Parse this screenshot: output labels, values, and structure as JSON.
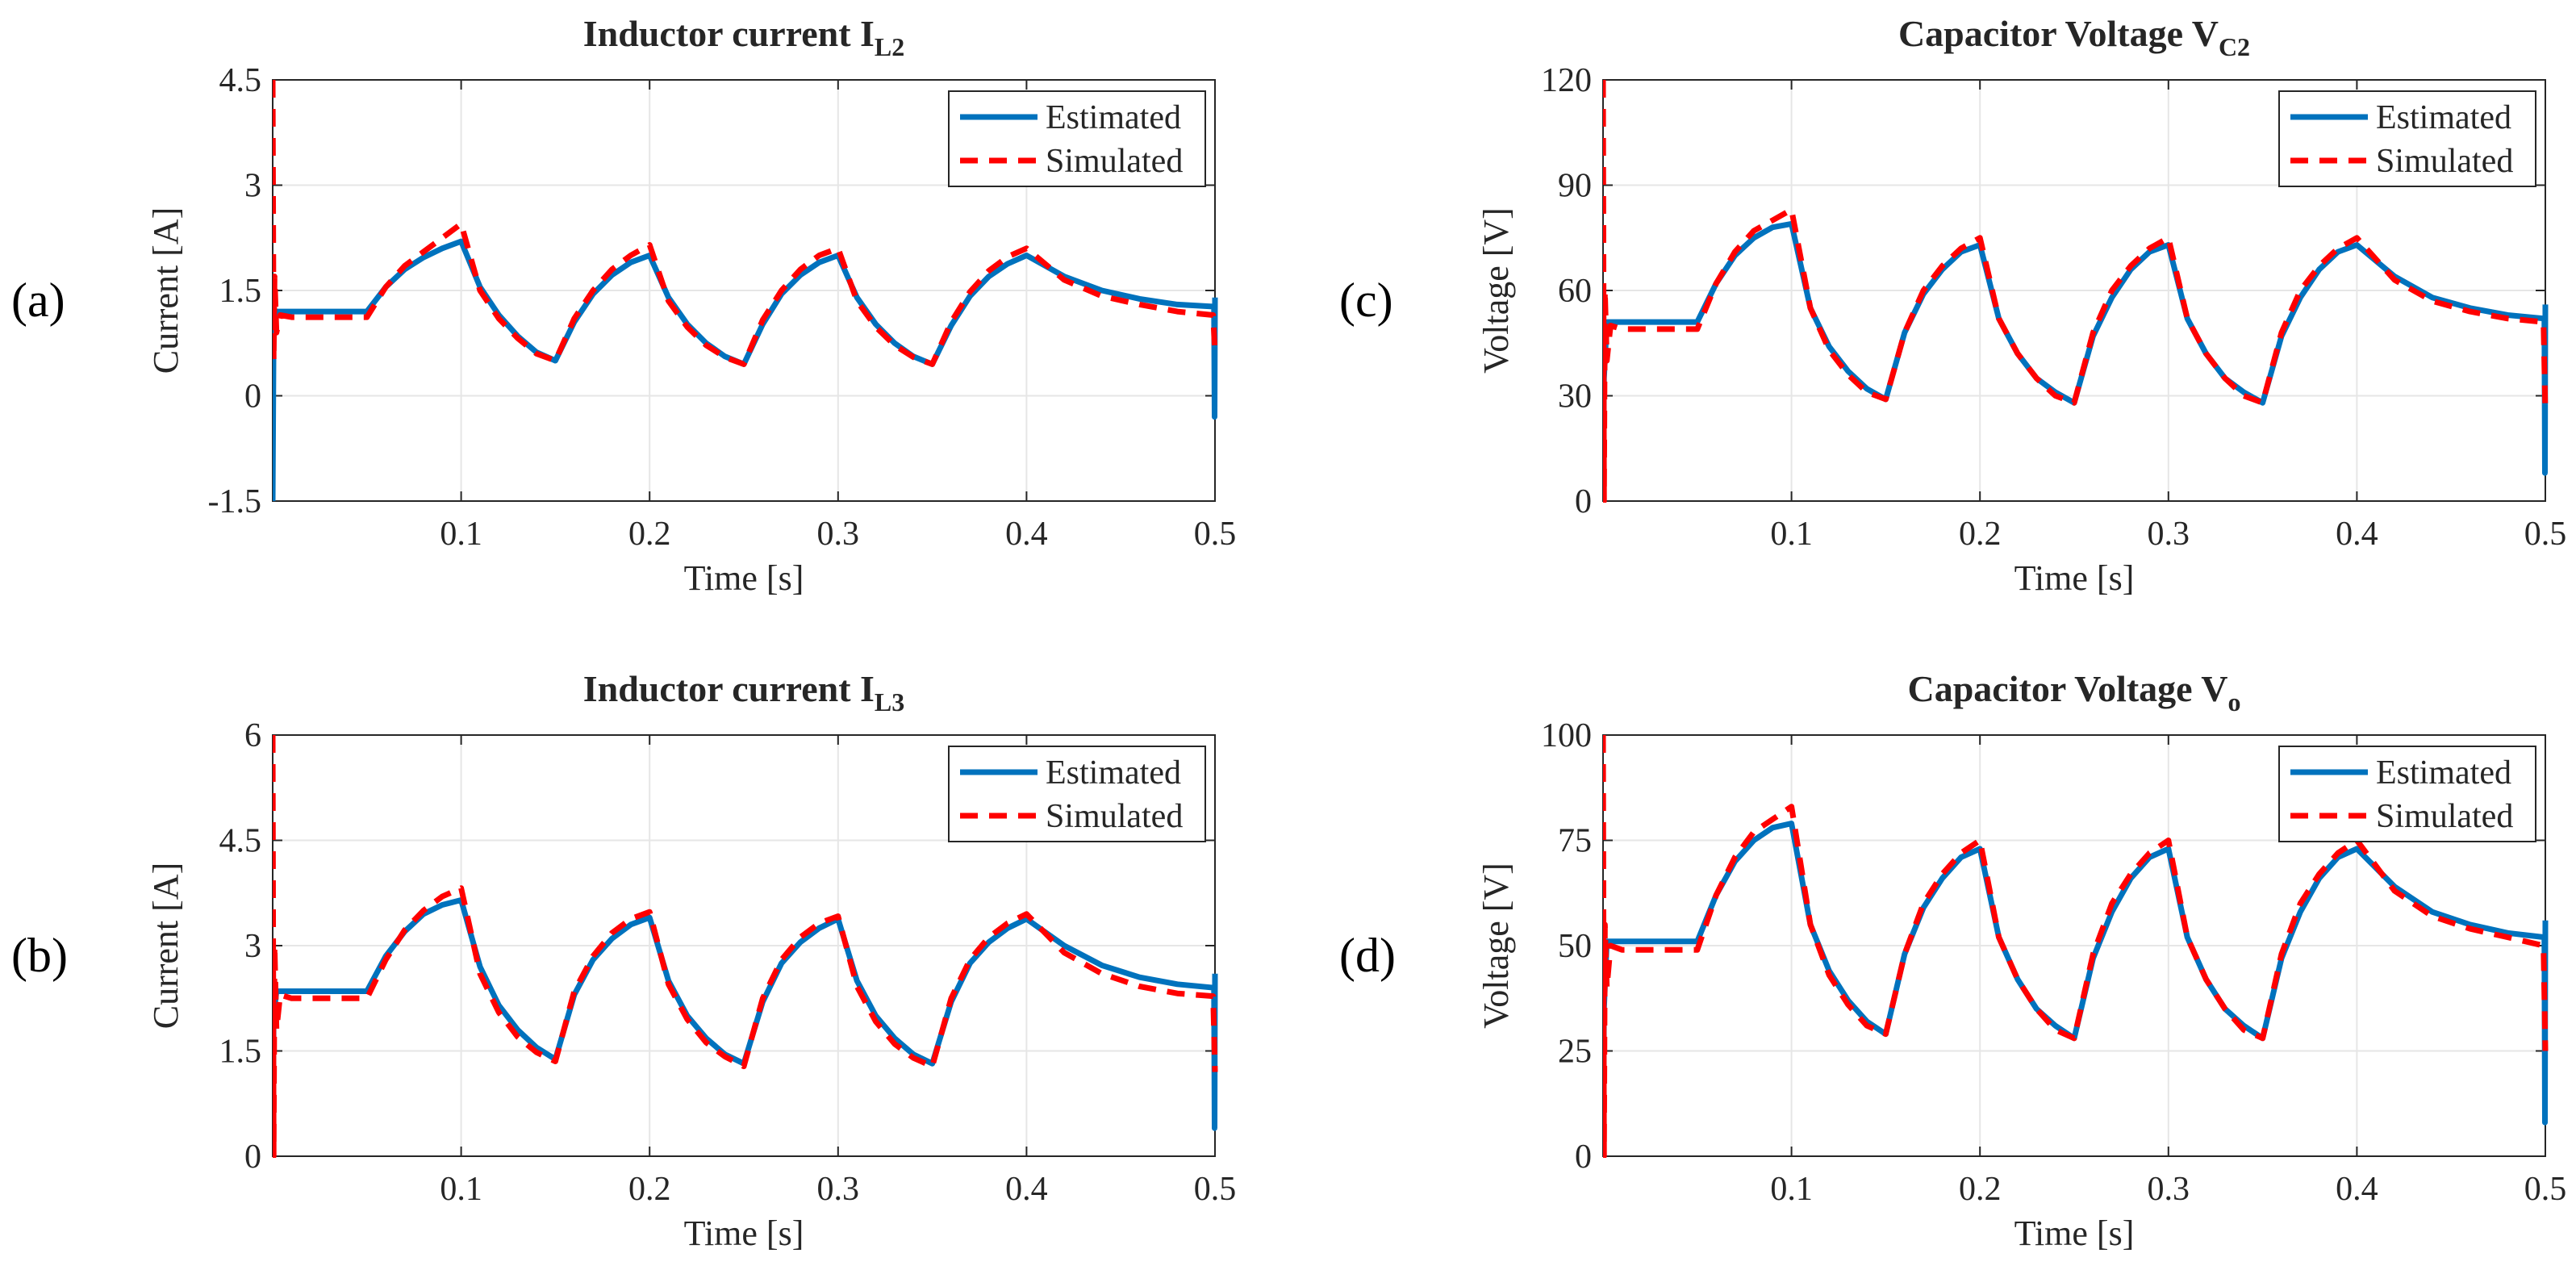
{
  "chart_data": [
    {
      "type": "line",
      "panel_label": "(a)",
      "title": "Inductor current I",
      "title_sub": "L2",
      "xlabel": "Time [s]",
      "ylabel": "Current [A]",
      "xlim": [
        0,
        0.5
      ],
      "ylim": [
        -1.5,
        4.5
      ],
      "xticks": [
        0.1,
        0.2,
        0.3,
        0.4,
        0.5
      ],
      "xtick_labels": [
        "0.1",
        "0.2",
        "0.3",
        "0.4",
        "0.5"
      ],
      "yticks": [
        -1.5,
        0,
        1.5,
        3,
        4.5
      ],
      "ytick_labels": [
        "-1.5",
        "0",
        "1.5",
        "3",
        "4.5"
      ],
      "grid": true,
      "legend": {
        "location": "top-right",
        "entries": [
          "Estimated",
          "Simulated"
        ]
      },
      "series": [
        {
          "name": "Estimated",
          "color": "#0072BD",
          "style": "solid",
          "x": [
            0,
            0.0005,
            0.002,
            0.05,
            0.06,
            0.07,
            0.08,
            0.09,
            0.1,
            0.11,
            0.12,
            0.13,
            0.14,
            0.15,
            0.16,
            0.17,
            0.18,
            0.19,
            0.2,
            0.21,
            0.22,
            0.23,
            0.24,
            0.25,
            0.26,
            0.27,
            0.28,
            0.29,
            0.3,
            0.31,
            0.32,
            0.33,
            0.34,
            0.35,
            0.36,
            0.37,
            0.38,
            0.39,
            0.4,
            0.42,
            0.44,
            0.46,
            0.48,
            0.4995,
            0.4998,
            0.5
          ],
          "y": [
            -1.5,
            1.0,
            1.2,
            1.2,
            1.55,
            1.8,
            1.97,
            2.1,
            2.2,
            1.55,
            1.15,
            0.85,
            0.62,
            0.5,
            1.05,
            1.45,
            1.72,
            1.9,
            2.0,
            1.4,
            1.02,
            0.75,
            0.56,
            0.45,
            1.02,
            1.45,
            1.72,
            1.9,
            2.0,
            1.4,
            1.02,
            0.75,
            0.56,
            0.45,
            1.0,
            1.42,
            1.7,
            1.88,
            2.0,
            1.7,
            1.5,
            1.38,
            1.3,
            1.27,
            -0.3,
            1.4
          ]
        },
        {
          "name": "Simulated",
          "color": "#FF0000",
          "style": "dashed",
          "x": [
            0,
            0.0005,
            0.001,
            0.002,
            0.004,
            0.01,
            0.05,
            0.06,
            0.07,
            0.08,
            0.09,
            0.1,
            0.11,
            0.12,
            0.13,
            0.14,
            0.15,
            0.16,
            0.17,
            0.18,
            0.19,
            0.2,
            0.21,
            0.22,
            0.23,
            0.24,
            0.25,
            0.26,
            0.27,
            0.28,
            0.29,
            0.3,
            0.31,
            0.32,
            0.33,
            0.34,
            0.35,
            0.36,
            0.37,
            0.38,
            0.39,
            0.4,
            0.42,
            0.44,
            0.46,
            0.48,
            0.499,
            0.5
          ],
          "y": [
            4.5,
            0.5,
            1.7,
            0.9,
            1.15,
            1.12,
            1.12,
            1.55,
            1.85,
            2.05,
            2.25,
            2.45,
            1.5,
            1.1,
            0.82,
            0.6,
            0.5,
            1.1,
            1.5,
            1.8,
            2.0,
            2.15,
            1.35,
            0.98,
            0.72,
            0.55,
            0.45,
            1.08,
            1.5,
            1.8,
            2.0,
            2.1,
            1.35,
            0.98,
            0.72,
            0.55,
            0.45,
            1.05,
            1.48,
            1.78,
            1.98,
            2.1,
            1.65,
            1.42,
            1.3,
            1.2,
            1.15,
            0.6
          ]
        }
      ]
    },
    {
      "type": "line",
      "panel_label": "(b)",
      "title": "Inductor current I",
      "title_sub": "L3",
      "xlabel": "Time [s]",
      "ylabel": "Current [A]",
      "xlim": [
        0,
        0.5
      ],
      "ylim": [
        0,
        6
      ],
      "xticks": [
        0.1,
        0.2,
        0.3,
        0.4,
        0.5
      ],
      "xtick_labels": [
        "0.1",
        "0.2",
        "0.3",
        "0.4",
        "0.5"
      ],
      "yticks": [
        0,
        1.5,
        3,
        4.5,
        6
      ],
      "ytick_labels": [
        "0",
        "1.5",
        "3",
        "4.5",
        "6"
      ],
      "grid": true,
      "legend": {
        "location": "top-right",
        "entries": [
          "Estimated",
          "Simulated"
        ]
      },
      "series": [
        {
          "name": "Estimated",
          "color": "#0072BD",
          "style": "solid",
          "x": [
            0,
            0.0005,
            0.002,
            0.05,
            0.06,
            0.07,
            0.08,
            0.09,
            0.1,
            0.11,
            0.12,
            0.13,
            0.14,
            0.15,
            0.16,
            0.17,
            0.18,
            0.19,
            0.2,
            0.21,
            0.22,
            0.23,
            0.24,
            0.25,
            0.26,
            0.27,
            0.28,
            0.29,
            0.3,
            0.31,
            0.32,
            0.33,
            0.34,
            0.35,
            0.36,
            0.37,
            0.38,
            0.39,
            0.4,
            0.42,
            0.44,
            0.46,
            0.48,
            0.4995,
            0.4998,
            0.5
          ],
          "y": [
            0.1,
            2.0,
            2.35,
            2.35,
            2.85,
            3.2,
            3.45,
            3.58,
            3.65,
            2.7,
            2.15,
            1.8,
            1.55,
            1.38,
            2.3,
            2.8,
            3.1,
            3.3,
            3.4,
            2.5,
            2.0,
            1.68,
            1.45,
            1.32,
            2.2,
            2.75,
            3.05,
            3.25,
            3.38,
            2.5,
            2.0,
            1.68,
            1.45,
            1.32,
            2.2,
            2.75,
            3.05,
            3.25,
            3.38,
            3.0,
            2.72,
            2.55,
            2.45,
            2.4,
            0.4,
            2.6
          ]
        },
        {
          "name": "Simulated",
          "color": "#FF0000",
          "style": "dashed",
          "x": [
            0,
            0.0005,
            0.001,
            0.002,
            0.004,
            0.01,
            0.05,
            0.06,
            0.07,
            0.08,
            0.09,
            0.1,
            0.11,
            0.12,
            0.13,
            0.14,
            0.15,
            0.16,
            0.17,
            0.18,
            0.19,
            0.2,
            0.21,
            0.22,
            0.23,
            0.24,
            0.25,
            0.26,
            0.27,
            0.28,
            0.29,
            0.3,
            0.31,
            0.32,
            0.33,
            0.34,
            0.35,
            0.36,
            0.37,
            0.38,
            0.39,
            0.4,
            0.42,
            0.44,
            0.46,
            0.48,
            0.499,
            0.5
          ],
          "y": [
            6.0,
            0.0,
            3.0,
            1.8,
            2.3,
            2.25,
            2.25,
            2.8,
            3.22,
            3.5,
            3.7,
            3.82,
            2.6,
            2.05,
            1.7,
            1.48,
            1.35,
            2.35,
            2.85,
            3.18,
            3.38,
            3.48,
            2.45,
            1.95,
            1.62,
            1.42,
            1.28,
            2.25,
            2.8,
            3.12,
            3.32,
            3.42,
            2.42,
            1.92,
            1.6,
            1.4,
            1.28,
            2.25,
            2.8,
            3.12,
            3.32,
            3.45,
            2.9,
            2.6,
            2.42,
            2.32,
            2.28,
            1.2
          ]
        }
      ]
    },
    {
      "type": "line",
      "panel_label": "(c)",
      "title": "Capacitor Voltage V",
      "title_sub": "C2",
      "xlabel": "Time [s]",
      "ylabel": "Voltage [V]",
      "xlim": [
        0,
        0.5
      ],
      "ylim": [
        0,
        120
      ],
      "xticks": [
        0.1,
        0.2,
        0.3,
        0.4,
        0.5
      ],
      "xtick_labels": [
        "0.1",
        "0.2",
        "0.3",
        "0.4",
        "0.5"
      ],
      "yticks": [
        0,
        30,
        60,
        90,
        120
      ],
      "ytick_labels": [
        "0",
        "30",
        "60",
        "90",
        "120"
      ],
      "grid": true,
      "legend": {
        "location": "top-right",
        "entries": [
          "Estimated",
          "Simulated"
        ]
      },
      "series": [
        {
          "name": "Estimated",
          "color": "#0072BD",
          "style": "solid",
          "x": [
            0,
            0.0005,
            0.002,
            0.05,
            0.06,
            0.07,
            0.08,
            0.09,
            0.1,
            0.11,
            0.12,
            0.13,
            0.14,
            0.15,
            0.16,
            0.17,
            0.18,
            0.19,
            0.2,
            0.21,
            0.22,
            0.23,
            0.24,
            0.25,
            0.26,
            0.27,
            0.28,
            0.29,
            0.3,
            0.31,
            0.32,
            0.33,
            0.34,
            0.35,
            0.36,
            0.37,
            0.38,
            0.39,
            0.4,
            0.42,
            0.44,
            0.46,
            0.48,
            0.4995,
            0.4998,
            0.5
          ],
          "y": [
            0,
            35,
            51,
            51,
            62,
            70,
            75,
            78,
            79,
            55,
            44,
            37,
            32,
            29,
            48,
            59,
            66,
            71,
            73,
            52,
            42,
            35,
            31,
            28,
            47,
            58,
            66,
            71,
            73,
            52,
            42,
            35,
            31,
            28,
            47,
            58,
            66,
            71,
            73,
            64,
            58,
            55,
            53,
            52,
            8,
            56
          ]
        },
        {
          "name": "Simulated",
          "color": "#FF0000",
          "style": "dashed",
          "x": [
            0,
            0.0005,
            0.001,
            0.002,
            0.004,
            0.01,
            0.05,
            0.06,
            0.07,
            0.08,
            0.09,
            0.1,
            0.11,
            0.12,
            0.13,
            0.14,
            0.15,
            0.16,
            0.17,
            0.18,
            0.19,
            0.2,
            0.21,
            0.22,
            0.23,
            0.24,
            0.25,
            0.26,
            0.27,
            0.28,
            0.29,
            0.3,
            0.31,
            0.32,
            0.33,
            0.34,
            0.35,
            0.36,
            0.37,
            0.38,
            0.39,
            0.4,
            0.42,
            0.44,
            0.46,
            0.48,
            0.499,
            0.5
          ],
          "y": [
            120,
            0,
            60,
            40,
            50,
            49,
            49,
            62,
            71,
            77,
            80,
            83,
            55,
            43,
            36,
            31,
            29,
            48,
            60,
            67,
            72,
            75,
            52,
            42,
            35,
            30,
            28,
            48,
            60,
            67,
            72,
            75,
            52,
            42,
            35,
            30,
            28,
            48,
            60,
            67,
            72,
            75,
            63,
            57,
            54,
            52,
            51,
            25
          ]
        }
      ]
    },
    {
      "type": "line",
      "panel_label": "(d)",
      "title": "Capacitor Voltage V",
      "title_sub": "o",
      "xlabel": "Time [s]",
      "ylabel": "Voltage [V]",
      "xlim": [
        0,
        0.5
      ],
      "ylim": [
        0,
        100
      ],
      "xticks": [
        0.1,
        0.2,
        0.3,
        0.4,
        0.5
      ],
      "xtick_labels": [
        "0.1",
        "0.2",
        "0.3",
        "0.4",
        "0.5"
      ],
      "yticks": [
        0,
        25,
        50,
        75,
        100
      ],
      "ytick_labels": [
        "0",
        "25",
        "50",
        "75",
        "100"
      ],
      "grid": true,
      "legend": {
        "location": "top-right",
        "entries": [
          "Estimated",
          "Simulated"
        ]
      },
      "series": [
        {
          "name": "Estimated",
          "color": "#0072BD",
          "style": "solid",
          "x": [
            0,
            0.0005,
            0.002,
            0.05,
            0.06,
            0.07,
            0.08,
            0.09,
            0.1,
            0.11,
            0.12,
            0.13,
            0.14,
            0.15,
            0.16,
            0.17,
            0.18,
            0.19,
            0.2,
            0.21,
            0.22,
            0.23,
            0.24,
            0.25,
            0.26,
            0.27,
            0.28,
            0.29,
            0.3,
            0.31,
            0.32,
            0.33,
            0.34,
            0.35,
            0.36,
            0.37,
            0.38,
            0.39,
            0.4,
            0.42,
            0.44,
            0.46,
            0.48,
            0.4995,
            0.4998,
            0.5
          ],
          "y": [
            0,
            35,
            51,
            51,
            62,
            70,
            75,
            78,
            79,
            55,
            44,
            37,
            32,
            29,
            48,
            59,
            66,
            71,
            73,
            52,
            42,
            35,
            31,
            28,
            47,
            58,
            66,
            71,
            73,
            52,
            42,
            35,
            31,
            28,
            47,
            58,
            66,
            71,
            73,
            64,
            58,
            55,
            53,
            52,
            8,
            56
          ]
        },
        {
          "name": "Simulated",
          "color": "#FF0000",
          "style": "dashed",
          "x": [
            0,
            0.0005,
            0.001,
            0.002,
            0.004,
            0.01,
            0.05,
            0.06,
            0.07,
            0.08,
            0.09,
            0.1,
            0.11,
            0.12,
            0.13,
            0.14,
            0.15,
            0.16,
            0.17,
            0.18,
            0.19,
            0.2,
            0.21,
            0.22,
            0.23,
            0.24,
            0.25,
            0.26,
            0.27,
            0.28,
            0.29,
            0.3,
            0.31,
            0.32,
            0.33,
            0.34,
            0.35,
            0.36,
            0.37,
            0.38,
            0.39,
            0.4,
            0.42,
            0.44,
            0.46,
            0.48,
            0.499,
            0.5
          ],
          "y": [
            100,
            0,
            55,
            40,
            50,
            49,
            49,
            62,
            71,
            77,
            80,
            83,
            55,
            43,
            36,
            31,
            29,
            48,
            60,
            67,
            72,
            75,
            52,
            42,
            35,
            30,
            28,
            48,
            60,
            67,
            72,
            75,
            52,
            42,
            35,
            30,
            28,
            48,
            60,
            67,
            72,
            75,
            63,
            57,
            54,
            52,
            50,
            25
          ]
        }
      ]
    }
  ]
}
